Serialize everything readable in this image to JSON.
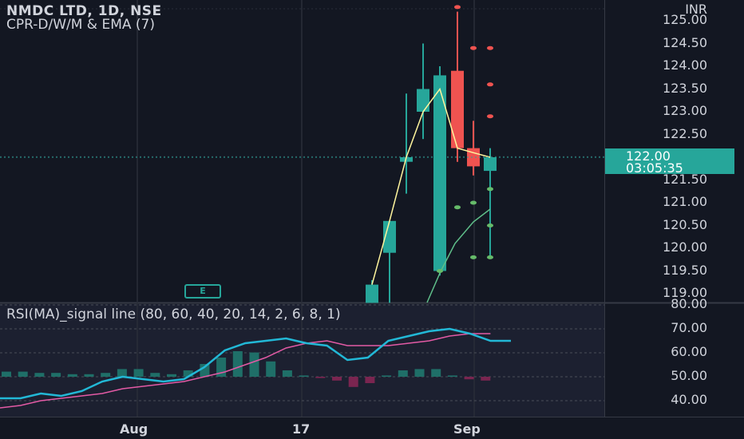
{
  "header": {
    "symbol": "NMDC LTD, 1D, NSE",
    "indicator": "CPR-D/W/M & EMA (7)",
    "rsi_title": "RSI(MA)_signal line (80, 60, 40, 20, 14, 2, 6, 8, 1)",
    "currency": "INR"
  },
  "last_price": {
    "price": "122.00",
    "countdown": "03:05:35"
  },
  "event_marker": "E",
  "colors": {
    "up": "#26a69a",
    "down": "#ef5350",
    "ema": "#fff59d",
    "rsi": "#22b8d6",
    "rsi_ma": "#e35aa5",
    "bg": "#131722"
  },
  "chart_data": [
    {
      "type": "candlestick",
      "title": "NMDC LTD, 1D, NSE",
      "ylabel": "INR",
      "ylim": [
        118.8,
        125.3
      ],
      "y_ticks": [
        "125.00",
        "124.50",
        "124.00",
        "123.50",
        "123.00",
        "122.50",
        "121.50",
        "121.00",
        "120.50",
        "120.00",
        "119.50",
        "119.00"
      ],
      "x_ticks": [
        "Aug",
        "17",
        "Sep"
      ],
      "candles": [
        {
          "open": 118.8,
          "high": 119.3,
          "low": 118.8,
          "close": 119.2
        },
        {
          "open": 119.9,
          "high": 120.6,
          "low": 118.8,
          "close": 120.6
        },
        {
          "open": 121.9,
          "high": 123.4,
          "low": 121.2,
          "close": 122.0
        },
        {
          "open": 123.0,
          "high": 124.5,
          "low": 122.4,
          "close": 123.5
        },
        {
          "open": 119.5,
          "high": 124.0,
          "low": 119.4,
          "close": 123.8
        },
        {
          "open": 123.9,
          "high": 125.2,
          "low": 121.9,
          "close": 122.2
        },
        {
          "open": 122.2,
          "high": 122.8,
          "low": 121.6,
          "close": 121.8
        },
        {
          "open": 121.7,
          "high": 122.2,
          "low": 119.8,
          "close": 122.0
        }
      ],
      "ema_points": [
        119.2,
        120.6,
        122.0,
        123.0,
        123.5,
        122.2,
        122.1,
        122.0
      ],
      "pivot_red": [
        125.3,
        124.4,
        124.4,
        123.6,
        122.9
      ],
      "pivot_green": [
        119.5,
        120.9,
        121.0,
        121.3,
        120.5,
        119.8,
        119.8
      ],
      "last": 122.0
    },
    {
      "type": "line",
      "title": "RSI(MA)_signal line (80, 60, 40, 20, 14, 2, 6, 8, 1)",
      "ylim": [
        35,
        80
      ],
      "y_ticks": [
        "80.00",
        "70.00",
        "60.00",
        "50.00",
        "40.00"
      ],
      "series": [
        {
          "values": [
            41,
            41,
            43,
            42,
            44,
            48,
            50,
            49,
            48,
            49,
            54,
            61,
            64,
            65,
            66,
            64,
            63,
            57,
            58,
            65,
            67,
            69,
            70,
            68,
            65,
            65
          ]
        },
        {
          "values": [
            37,
            38,
            40,
            41,
            42,
            43,
            45,
            46,
            47,
            48,
            50,
            52,
            55,
            58,
            62,
            64,
            65,
            63,
            63,
            63,
            64,
            65,
            67,
            68,
            68
          ]
        }
      ],
      "histogram": [
        4,
        4,
        3,
        3,
        2,
        2,
        3,
        6,
        6,
        3,
        2,
        5,
        10,
        15,
        20,
        19,
        12,
        5,
        1,
        -1,
        -3,
        -8,
        -5,
        1,
        5,
        6,
        6,
        1,
        -2,
        -3
      ]
    }
  ]
}
